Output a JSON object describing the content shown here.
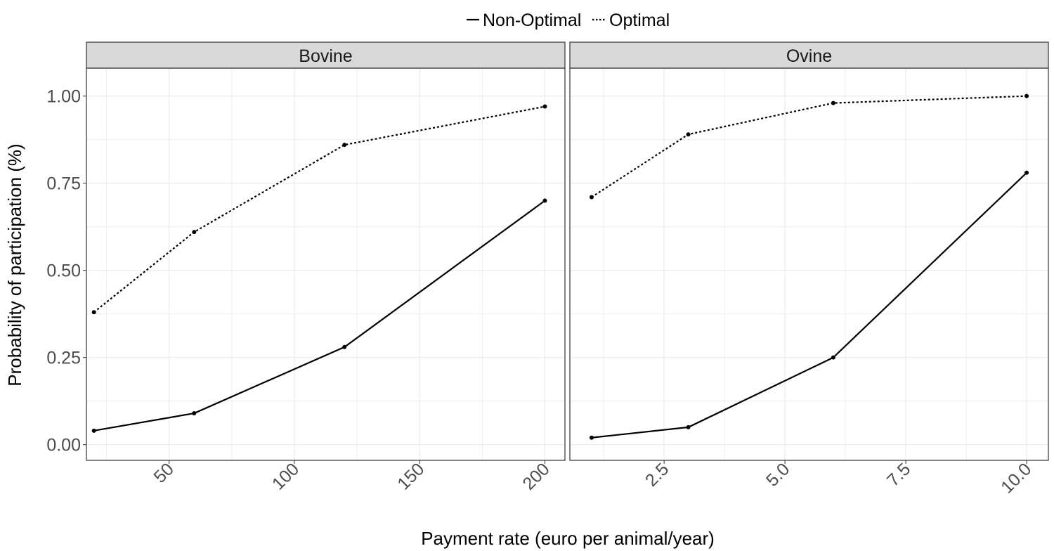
{
  "chart_data": {
    "type": "line",
    "xlabel": "Payment rate (euro per animal/year)",
    "ylabel": "Probability of participation (%)",
    "ylim": [
      0,
      1
    ],
    "y_ticks": [
      "0.00",
      "0.25",
      "0.50",
      "0.75",
      "1.00"
    ],
    "y_tick_values": [
      0,
      0.25,
      0.5,
      0.75,
      1.0
    ],
    "grid": true,
    "legend": {
      "position": "top",
      "items": [
        {
          "label": "Non-Optimal",
          "linetype": "solid"
        },
        {
          "label": "Optimal",
          "linetype": "dotted"
        }
      ]
    },
    "colors": {
      "line": "#000000",
      "grid": "#ebebeb",
      "strip_fill": "#d9d9d9",
      "panel_border": "#333333"
    },
    "panels": [
      {
        "title": "Bovine",
        "xlim": [
          17,
          208
        ],
        "x_ticks": [
          "50",
          "100",
          "150",
          "200"
        ],
        "x_tick_values": [
          50,
          100,
          150,
          200
        ],
        "series": [
          {
            "name": "Non-Optimal",
            "x": [
              20,
              60,
              120,
              200
            ],
            "y": [
              0.04,
              0.09,
              0.28,
              0.7
            ]
          },
          {
            "name": "Optimal",
            "x": [
              20,
              60,
              120,
              200
            ],
            "y": [
              0.38,
              0.61,
              0.86,
              0.97
            ]
          }
        ]
      },
      {
        "title": "Ovine",
        "xlim": [
          0.55,
          10.45
        ],
        "x_ticks": [
          "2.5",
          "5.0",
          "7.5",
          "10.0"
        ],
        "x_tick_values": [
          2.5,
          5.0,
          7.5,
          10.0
        ],
        "series": [
          {
            "name": "Non-Optimal",
            "x": [
              1,
              3,
              6,
              10
            ],
            "y": [
              0.02,
              0.05,
              0.25,
              0.78
            ]
          },
          {
            "name": "Optimal",
            "x": [
              1,
              3,
              6,
              10
            ],
            "y": [
              0.71,
              0.89,
              0.98,
              1.0
            ]
          }
        ]
      }
    ]
  }
}
